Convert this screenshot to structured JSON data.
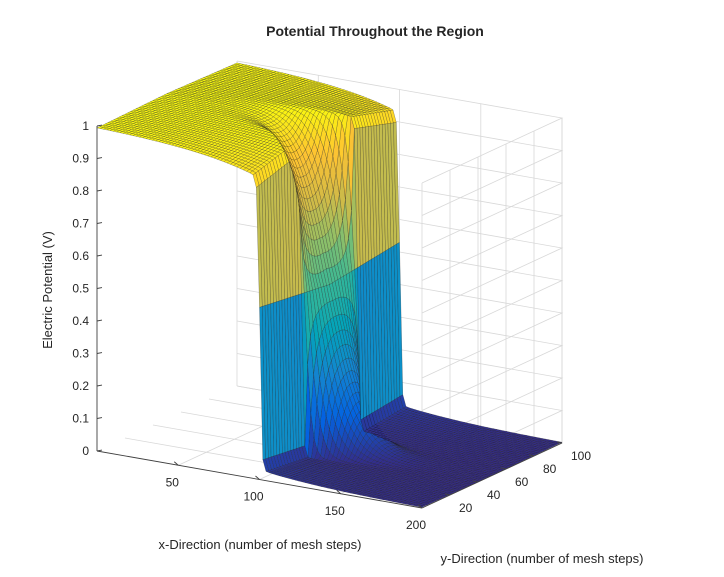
{
  "chart_data": {
    "type": "surface",
    "title": "Potential Throughout the Region",
    "xlabel": "x-Direction (number of mesh steps)",
    "ylabel": "y-Direction (number of mesh steps)",
    "zlabel": "Electric Potential (V)",
    "xlim": [
      0,
      200
    ],
    "ylim": [
      0,
      100
    ],
    "zlim": [
      0,
      1
    ],
    "xticks": [
      50,
      100,
      150,
      200
    ],
    "yticks": [
      20,
      40,
      60,
      80,
      100
    ],
    "zticks": [
      0,
      0.1,
      0.2,
      0.3,
      0.4,
      0.5,
      0.6,
      0.7,
      0.8,
      0.9,
      1
    ],
    "xtick_labels": [
      "50",
      "100",
      "150",
      "200"
    ],
    "ytick_labels": [
      "20",
      "40",
      "60",
      "80",
      "100"
    ],
    "ztick_labels": [
      "0",
      "0.1",
      "0.2",
      "0.3",
      "0.4",
      "0.5",
      "0.6",
      "0.7",
      "0.8",
      "0.9",
      "1"
    ],
    "grid": true,
    "colormap": "parula",
    "regions": [
      {
        "x_range": [
          0,
          100
        ],
        "potential": 1
      },
      {
        "x_range": [
          100,
          200
        ],
        "potential": 0
      }
    ],
    "electrode_edges": [
      {
        "x": 100,
        "y_range": [
          0,
          30
        ],
        "potential_range": [
          0,
          1
        ]
      },
      {
        "x": 100,
        "y_range": [
          70,
          100
        ],
        "potential_range": [
          0,
          1
        ]
      }
    ]
  }
}
